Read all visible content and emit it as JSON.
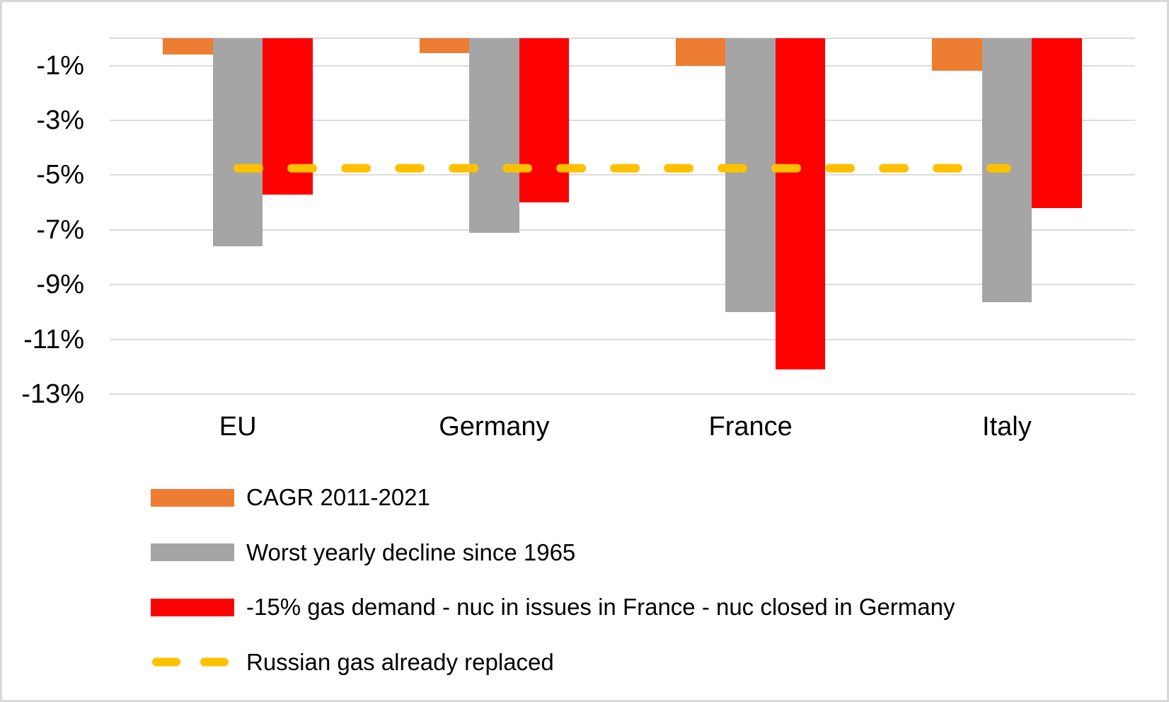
{
  "chart_data": {
    "type": "bar",
    "title": "",
    "xlabel": "",
    "ylabel": "",
    "categories": [
      "EU",
      "Germany",
      "France",
      "Italy"
    ],
    "series": [
      {
        "name": "CAGR 2011-2021",
        "color": "#ED7D31",
        "values": [
          -0.6,
          -0.55,
          -1.0,
          -1.2
        ]
      },
      {
        "name": "Worst yearly decline since 1965",
        "color": "#A5A5A5",
        "values": [
          -7.6,
          -7.1,
          -10.0,
          -9.65
        ]
      },
      {
        "name": "-15% gas demand - nuc in issues in France - nuc closed in Germany",
        "color": "#FF0000",
        "values": [
          -5.7,
          -6.0,
          -12.1,
          -6.2
        ]
      }
    ],
    "reference_line": {
      "name": "Russian gas already replaced",
      "color": "#FFC000",
      "value": -4.75,
      "style": "dashed",
      "span": "first-to-last-category-center"
    },
    "ylim": [
      -13,
      0
    ],
    "yticks": [
      -1,
      -3,
      -5,
      -7,
      -9,
      -11,
      -13
    ],
    "ytick_labels": [
      "-1%",
      "-3%",
      "-5%",
      "-7%",
      "-9%",
      "-11%",
      "-13%"
    ],
    "grid": true,
    "legend_position": "bottom-left",
    "colors": {
      "gridline": "#DCDCDC",
      "axis_line": "#DCDCDC",
      "text": "#000000",
      "background": "#FFFFFF",
      "canvas_border": "#D8D8D8"
    }
  }
}
